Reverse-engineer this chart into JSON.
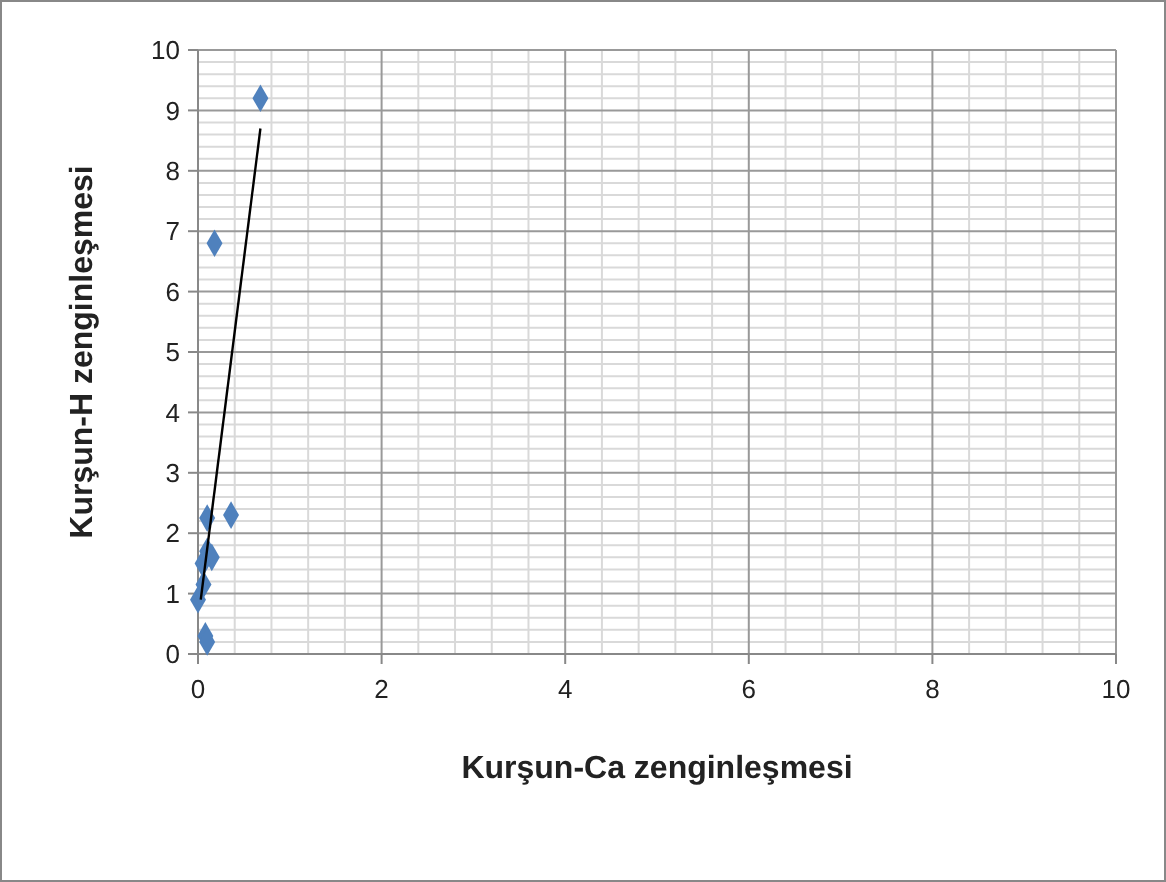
{
  "chart_data": {
    "type": "scatter",
    "xlabel": "Kurşun-Ca zenginleşmesi",
    "ylabel": "Kurşun-H zenginleşmesi",
    "xlim": [
      0,
      10
    ],
    "ylim": [
      0,
      10
    ],
    "xticks": [
      0,
      2,
      4,
      6,
      8,
      10
    ],
    "yticks": [
      0,
      1,
      2,
      3,
      4,
      5,
      6,
      7,
      8,
      9,
      10
    ],
    "grid": true,
    "series": [
      {
        "color": "#4f81bd",
        "marker": "diamond",
        "x": [
          0.68,
          0.18,
          0.36,
          0.1,
          0.1,
          0.15,
          0.05,
          0.06,
          0.0,
          0.08,
          0.1
        ],
        "values": [
          9.2,
          6.8,
          2.3,
          2.25,
          1.7,
          1.6,
          1.5,
          1.15,
          0.9,
          0.3,
          0.2
        ]
      },
      {
        "type": "line",
        "color": "#000000",
        "marker": "none",
        "x": [
          0.03,
          0.68
        ],
        "values": [
          0.9,
          8.7
        ]
      }
    ]
  }
}
